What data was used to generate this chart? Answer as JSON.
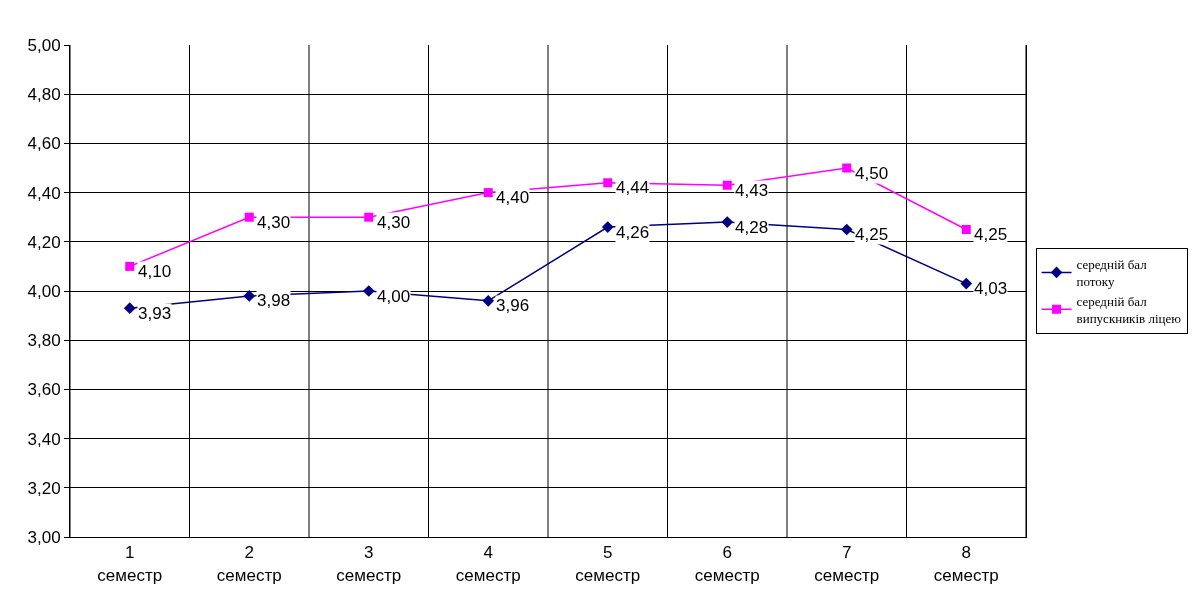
{
  "chart_data": {
    "type": "line",
    "categories": [
      "1\nсеместр",
      "2\nсеместр",
      "3\nсеместр",
      "4\nсеместр",
      "5\nсеместр",
      "6\nсеместр",
      "7\nсеместр",
      "8\nсеместр"
    ],
    "series": [
      {
        "name": "середній бал потоку",
        "color": "#000080",
        "marker": "diamond",
        "values": [
          3.93,
          3.98,
          4.0,
          3.96,
          4.26,
          4.28,
          4.25,
          4.03
        ],
        "value_labels": [
          "3,93",
          "3,98",
          "4,00",
          "3,96",
          "4,26",
          "4,28",
          "4,25",
          "4,03"
        ]
      },
      {
        "name": "середній бал випускників ліцею",
        "color": "#ff00ff",
        "marker": "square",
        "values": [
          4.1,
          4.3,
          4.3,
          4.4,
          4.44,
          4.43,
          4.5,
          4.25
        ],
        "value_labels": [
          "4,10",
          "4,30",
          "4,30",
          "4,40",
          "4,44",
          "4,43",
          "4,50",
          "4,25"
        ]
      }
    ],
    "ylim": [
      3.0,
      5.0
    ],
    "yticks": [
      {
        "value": 3.0,
        "label": "3,00"
      },
      {
        "value": 3.2,
        "label": "3,20"
      },
      {
        "value": 3.4,
        "label": "3,40"
      },
      {
        "value": 3.6,
        "label": "3,60"
      },
      {
        "value": 3.8,
        "label": "3,80"
      },
      {
        "value": 4.0,
        "label": "4,00"
      },
      {
        "value": 4.2,
        "label": "4,20"
      },
      {
        "value": 4.4,
        "label": "4,40"
      },
      {
        "value": 4.6,
        "label": "4,60"
      },
      {
        "value": 4.8,
        "label": "4,80"
      },
      {
        "value": 5.0,
        "label": "5,00"
      }
    ],
    "grid": true,
    "legend": "right"
  }
}
